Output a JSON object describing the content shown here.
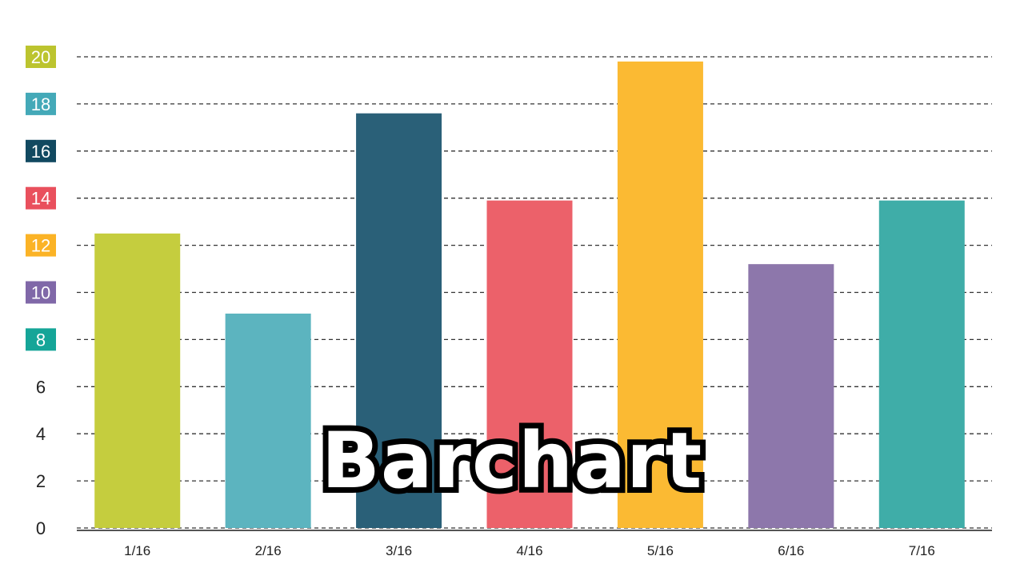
{
  "overlay_text": "Barchart",
  "chart_data": {
    "type": "bar",
    "categories": [
      "1/16",
      "2/16",
      "3/16",
      "4/16",
      "5/16",
      "6/16",
      "7/16"
    ],
    "values": [
      12.5,
      9.1,
      17.6,
      13.9,
      19.8,
      11.2,
      13.9
    ],
    "bar_colors": [
      "#c5cd3e",
      "#5cb4bf",
      "#2a6078",
      "#ec616a",
      "#fbba33",
      "#8d77ab",
      "#3fada8"
    ],
    "ylim": [
      0,
      20
    ],
    "yticks": [
      0,
      2,
      4,
      6,
      8,
      10,
      12,
      14,
      16,
      18,
      20
    ],
    "ytick_badge_colors": {
      "8": "#15a598",
      "10": "#8068a8",
      "12": "#fbb326",
      "14": "#e9505d",
      "16": "#114960",
      "18": "#44a9b8",
      "20": "#bcc42f"
    },
    "grid": true,
    "grid_style": "dashed",
    "legend": "none"
  }
}
